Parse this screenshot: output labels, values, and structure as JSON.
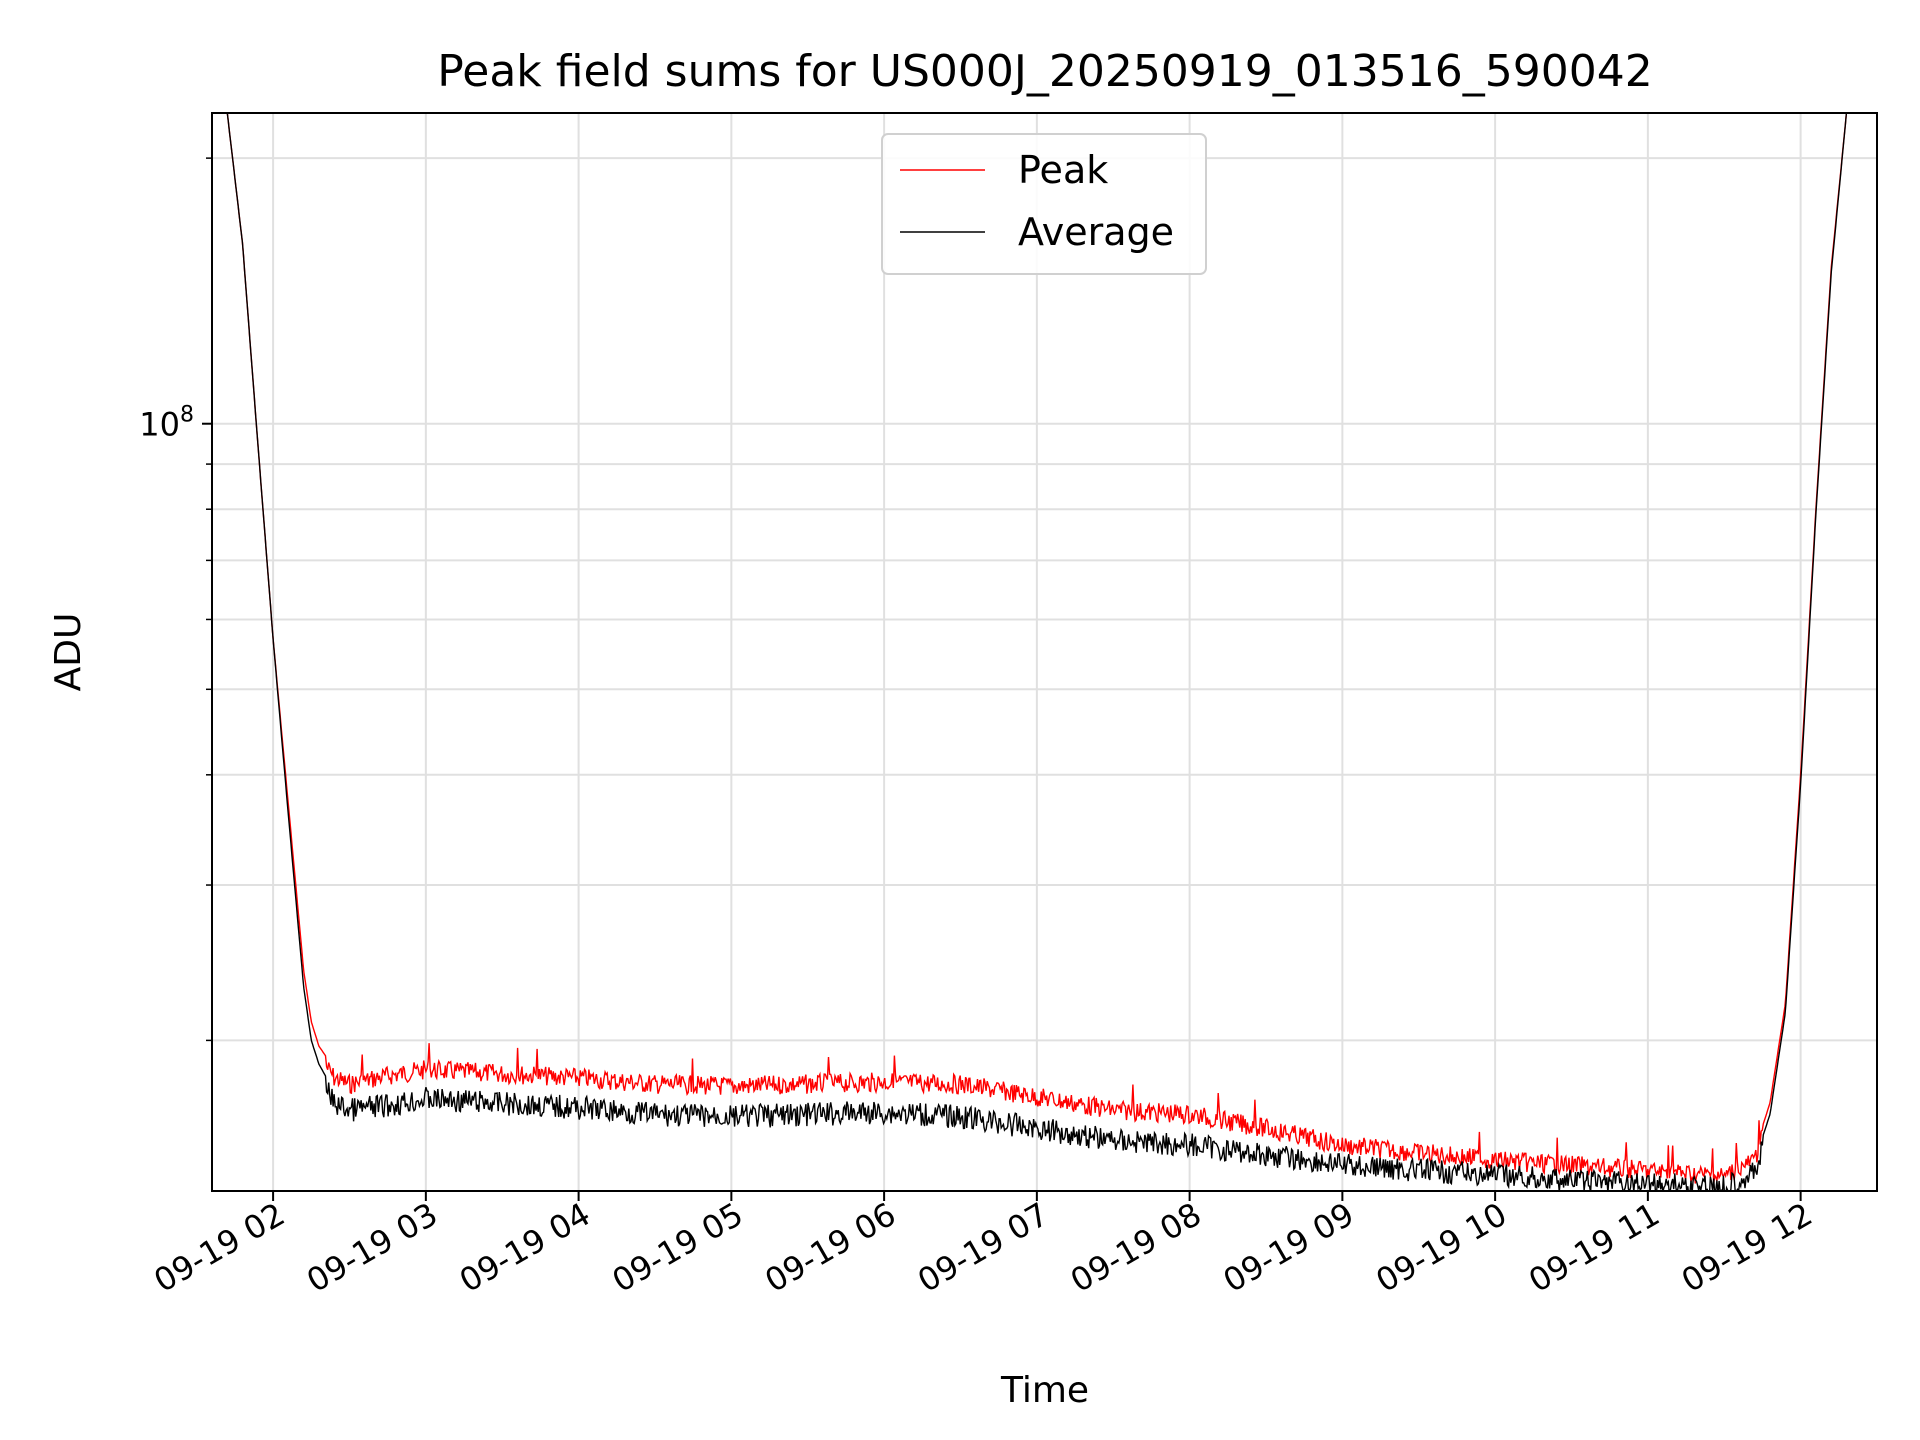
{
  "chart_data": {
    "type": "line",
    "title": "Peak field sums for US000J_20250919_013516_590042",
    "xlabel": "Time",
    "ylabel": "ADU",
    "yscale": "log",
    "ylim": [
      13500000,
      225000000
    ],
    "xlim": [
      1.6,
      12.5
    ],
    "grid": true,
    "legend_position": "top-center",
    "x_ticks": [
      {
        "value": 2,
        "label": "09-19 02"
      },
      {
        "value": 3,
        "label": "09-19 03"
      },
      {
        "value": 4,
        "label": "09-19 04"
      },
      {
        "value": 5,
        "label": "09-19 05"
      },
      {
        "value": 6,
        "label": "09-19 06"
      },
      {
        "value": 7,
        "label": "09-19 07"
      },
      {
        "value": 8,
        "label": "09-19 08"
      },
      {
        "value": 9,
        "label": "09-19 09"
      },
      {
        "value": 10,
        "label": "09-19 10"
      },
      {
        "value": 11,
        "label": "09-19 11"
      },
      {
        "value": 12,
        "label": "09-19 12"
      }
    ],
    "y_major_tick": {
      "value": 100000000,
      "base": "10",
      "exp": "8"
    },
    "y_minor_ticks": [
      20000000,
      30000000,
      40000000,
      50000000,
      60000000,
      70000000,
      80000000,
      90000000,
      200000000
    ],
    "series": [
      {
        "name": "Peak",
        "color": "#ff0000",
        "x": [
          1.7,
          1.8,
          1.9,
          2.0,
          2.1,
          2.2,
          2.25,
          2.3,
          2.4,
          2.5,
          2.75,
          3.0,
          3.5,
          4.0,
          4.5,
          5.0,
          5.5,
          6.0,
          6.5,
          7.0,
          7.5,
          8.0,
          8.5,
          9.0,
          9.5,
          10.0,
          10.5,
          11.0,
          11.5,
          11.7,
          11.8,
          11.9,
          12.0,
          12.1,
          12.2,
          12.3
        ],
        "y": [
          225000000,
          160000000,
          95000000,
          57000000,
          37000000,
          24000000,
          21000000,
          19700000,
          18600000,
          18300000,
          18700000,
          19000000,
          18800000,
          18600000,
          18300000,
          18200000,
          18300000,
          18400000,
          18300000,
          17700000,
          17100000,
          16900000,
          16300000,
          15600000,
          15300000,
          15000000,
          14800000,
          14600000,
          14400000,
          15000000,
          17000000,
          22000000,
          40000000,
          80000000,
          150000000,
          225000000
        ]
      },
      {
        "name": "Average",
        "color": "#000000",
        "x": [
          1.7,
          1.8,
          1.9,
          2.0,
          2.1,
          2.2,
          2.25,
          2.3,
          2.4,
          2.5,
          2.75,
          3.0,
          3.5,
          4.0,
          4.5,
          5.0,
          5.5,
          6.0,
          6.5,
          7.0,
          7.5,
          8.0,
          8.5,
          9.0,
          9.5,
          10.0,
          10.5,
          11.0,
          11.5,
          11.7,
          11.8,
          11.9,
          12.0,
          12.1,
          12.2,
          12.3
        ],
        "y": [
          225000000,
          160000000,
          95000000,
          57000000,
          36000000,
          23000000,
          20000000,
          18800000,
          17500000,
          17200000,
          17400000,
          17700000,
          17500000,
          17300000,
          17000000,
          16900000,
          17000000,
          17100000,
          16900000,
          16400000,
          15900000,
          15700000,
          15300000,
          14900000,
          14700000,
          14500000,
          14300000,
          14200000,
          14100000,
          14600000,
          16500000,
          21500000,
          39000000,
          79000000,
          148000000,
          225000000
        ]
      }
    ]
  }
}
